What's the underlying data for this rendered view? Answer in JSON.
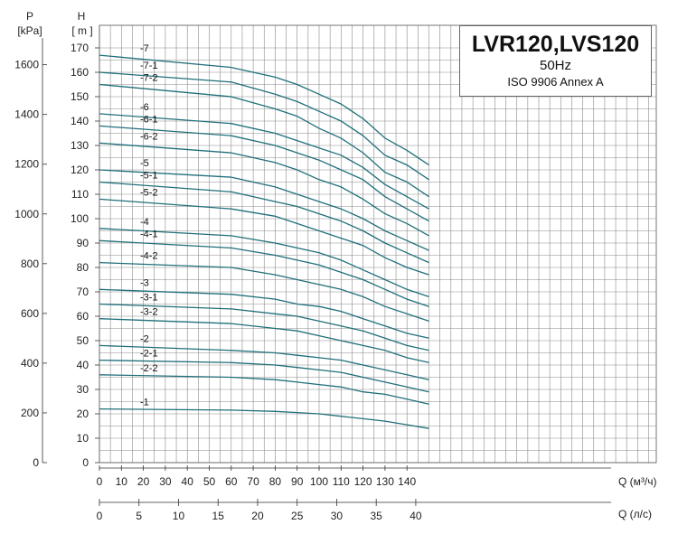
{
  "chart_data": {
    "type": "line",
    "title": "LVR120,LVS120",
    "subtitle_frequency": "50Hz",
    "subtitle_standard": "ISO 9906 Annex A",
    "left_axis_label_top": "P",
    "left_axis_label_unit": "[kPa]",
    "y_label_top": "H",
    "y_label_unit": "[ m ]",
    "x_label": "Q (м³/ч)",
    "x2_label": "Q (л/с)",
    "xlim": [
      0,
      150
    ],
    "ylim": [
      0,
      170
    ],
    "pressure_ticks": [
      "0",
      "200",
      "400",
      "600",
      "800",
      "1000",
      "1200",
      "1400",
      "1600"
    ],
    "pressure_tick_values": [
      0,
      200,
      400,
      600,
      800,
      1000,
      1200,
      1400,
      1600
    ],
    "y_ticks": [
      "0",
      "10",
      "20",
      "30",
      "40",
      "50",
      "60",
      "70",
      "80",
      "90",
      "100",
      "110",
      "120",
      "130",
      "140",
      "150",
      "160",
      "170"
    ],
    "x_ticks": [
      "0",
      "10",
      "20",
      "30",
      "40",
      "50",
      "60",
      "70",
      "80",
      "90",
      "100",
      "110",
      "120",
      "130",
      "140"
    ],
    "x2_ticks": [
      "0",
      "5",
      "10",
      "15",
      "20",
      "25",
      "30",
      "35",
      "40"
    ],
    "grid": true,
    "x": [
      0,
      60,
      80,
      90,
      100,
      110,
      120,
      130,
      140,
      150
    ],
    "series": [
      {
        "name": "-7",
        "values": [
          167,
          162,
          158,
          155,
          151,
          147,
          141,
          133,
          128,
          122
        ]
      },
      {
        "name": "-7-1",
        "values": [
          160,
          156,
          151,
          148,
          144,
          140,
          134,
          126,
          122,
          116
        ]
      },
      {
        "name": "-7-2",
        "values": [
          155,
          150,
          145,
          142,
          137,
          133,
          127,
          119,
          115,
          109
        ]
      },
      {
        "name": "-6",
        "values": [
          143,
          139,
          135,
          132,
          129,
          126,
          121,
          114,
          109,
          104
        ]
      },
      {
        "name": "-6-1",
        "values": [
          138,
          134,
          130,
          127,
          124,
          120,
          116,
          109,
          104,
          99
        ]
      },
      {
        "name": "-6-2",
        "values": [
          131,
          127,
          123,
          120,
          116,
          113,
          108,
          102,
          98,
          93
        ]
      },
      {
        "name": "-5",
        "values": [
          120,
          117,
          113,
          110,
          107,
          104,
          100,
          95,
          91,
          87
        ]
      },
      {
        "name": "-5-1",
        "values": [
          115,
          111,
          107,
          105,
          102,
          99,
          95,
          90,
          86,
          82
        ]
      },
      {
        "name": "-5-2",
        "values": [
          108,
          104,
          101,
          98,
          95,
          92,
          89,
          84,
          80,
          77
        ]
      },
      {
        "name": "-4",
        "values": [
          96,
          93,
          90,
          88,
          86,
          83,
          79,
          75,
          71,
          68
        ]
      },
      {
        "name": "-4-1",
        "values": [
          91,
          88,
          85,
          83,
          81,
          78,
          75,
          71,
          67,
          64
        ]
      },
      {
        "name": "-4-2",
        "values": [
          82,
          80,
          77,
          75,
          73,
          71,
          68,
          64,
          61,
          58
        ]
      },
      {
        "name": "-3",
        "values": [
          71,
          69,
          67,
          65,
          64,
          62,
          59,
          56,
          53,
          51
        ]
      },
      {
        "name": "-3-1",
        "values": [
          65,
          63,
          61,
          60,
          58,
          56,
          54,
          51,
          48,
          46
        ]
      },
      {
        "name": "-3-2",
        "values": [
          59,
          57,
          55,
          54,
          52,
          50,
          48,
          46,
          43,
          41
        ]
      },
      {
        "name": "-2",
        "values": [
          48,
          46,
          45,
          44,
          43,
          42,
          40,
          38,
          36,
          34
        ]
      },
      {
        "name": "-2-1",
        "values": [
          42,
          41,
          40,
          39,
          38,
          37,
          35,
          33,
          31,
          29
        ]
      },
      {
        "name": "-2-2",
        "values": [
          36,
          35,
          34,
          33,
          32,
          31,
          29,
          28,
          26,
          24
        ]
      },
      {
        "name": "-1",
        "values": [
          22,
          21.5,
          21,
          20.5,
          20,
          19,
          18,
          17,
          15.5,
          14
        ]
      }
    ]
  }
}
